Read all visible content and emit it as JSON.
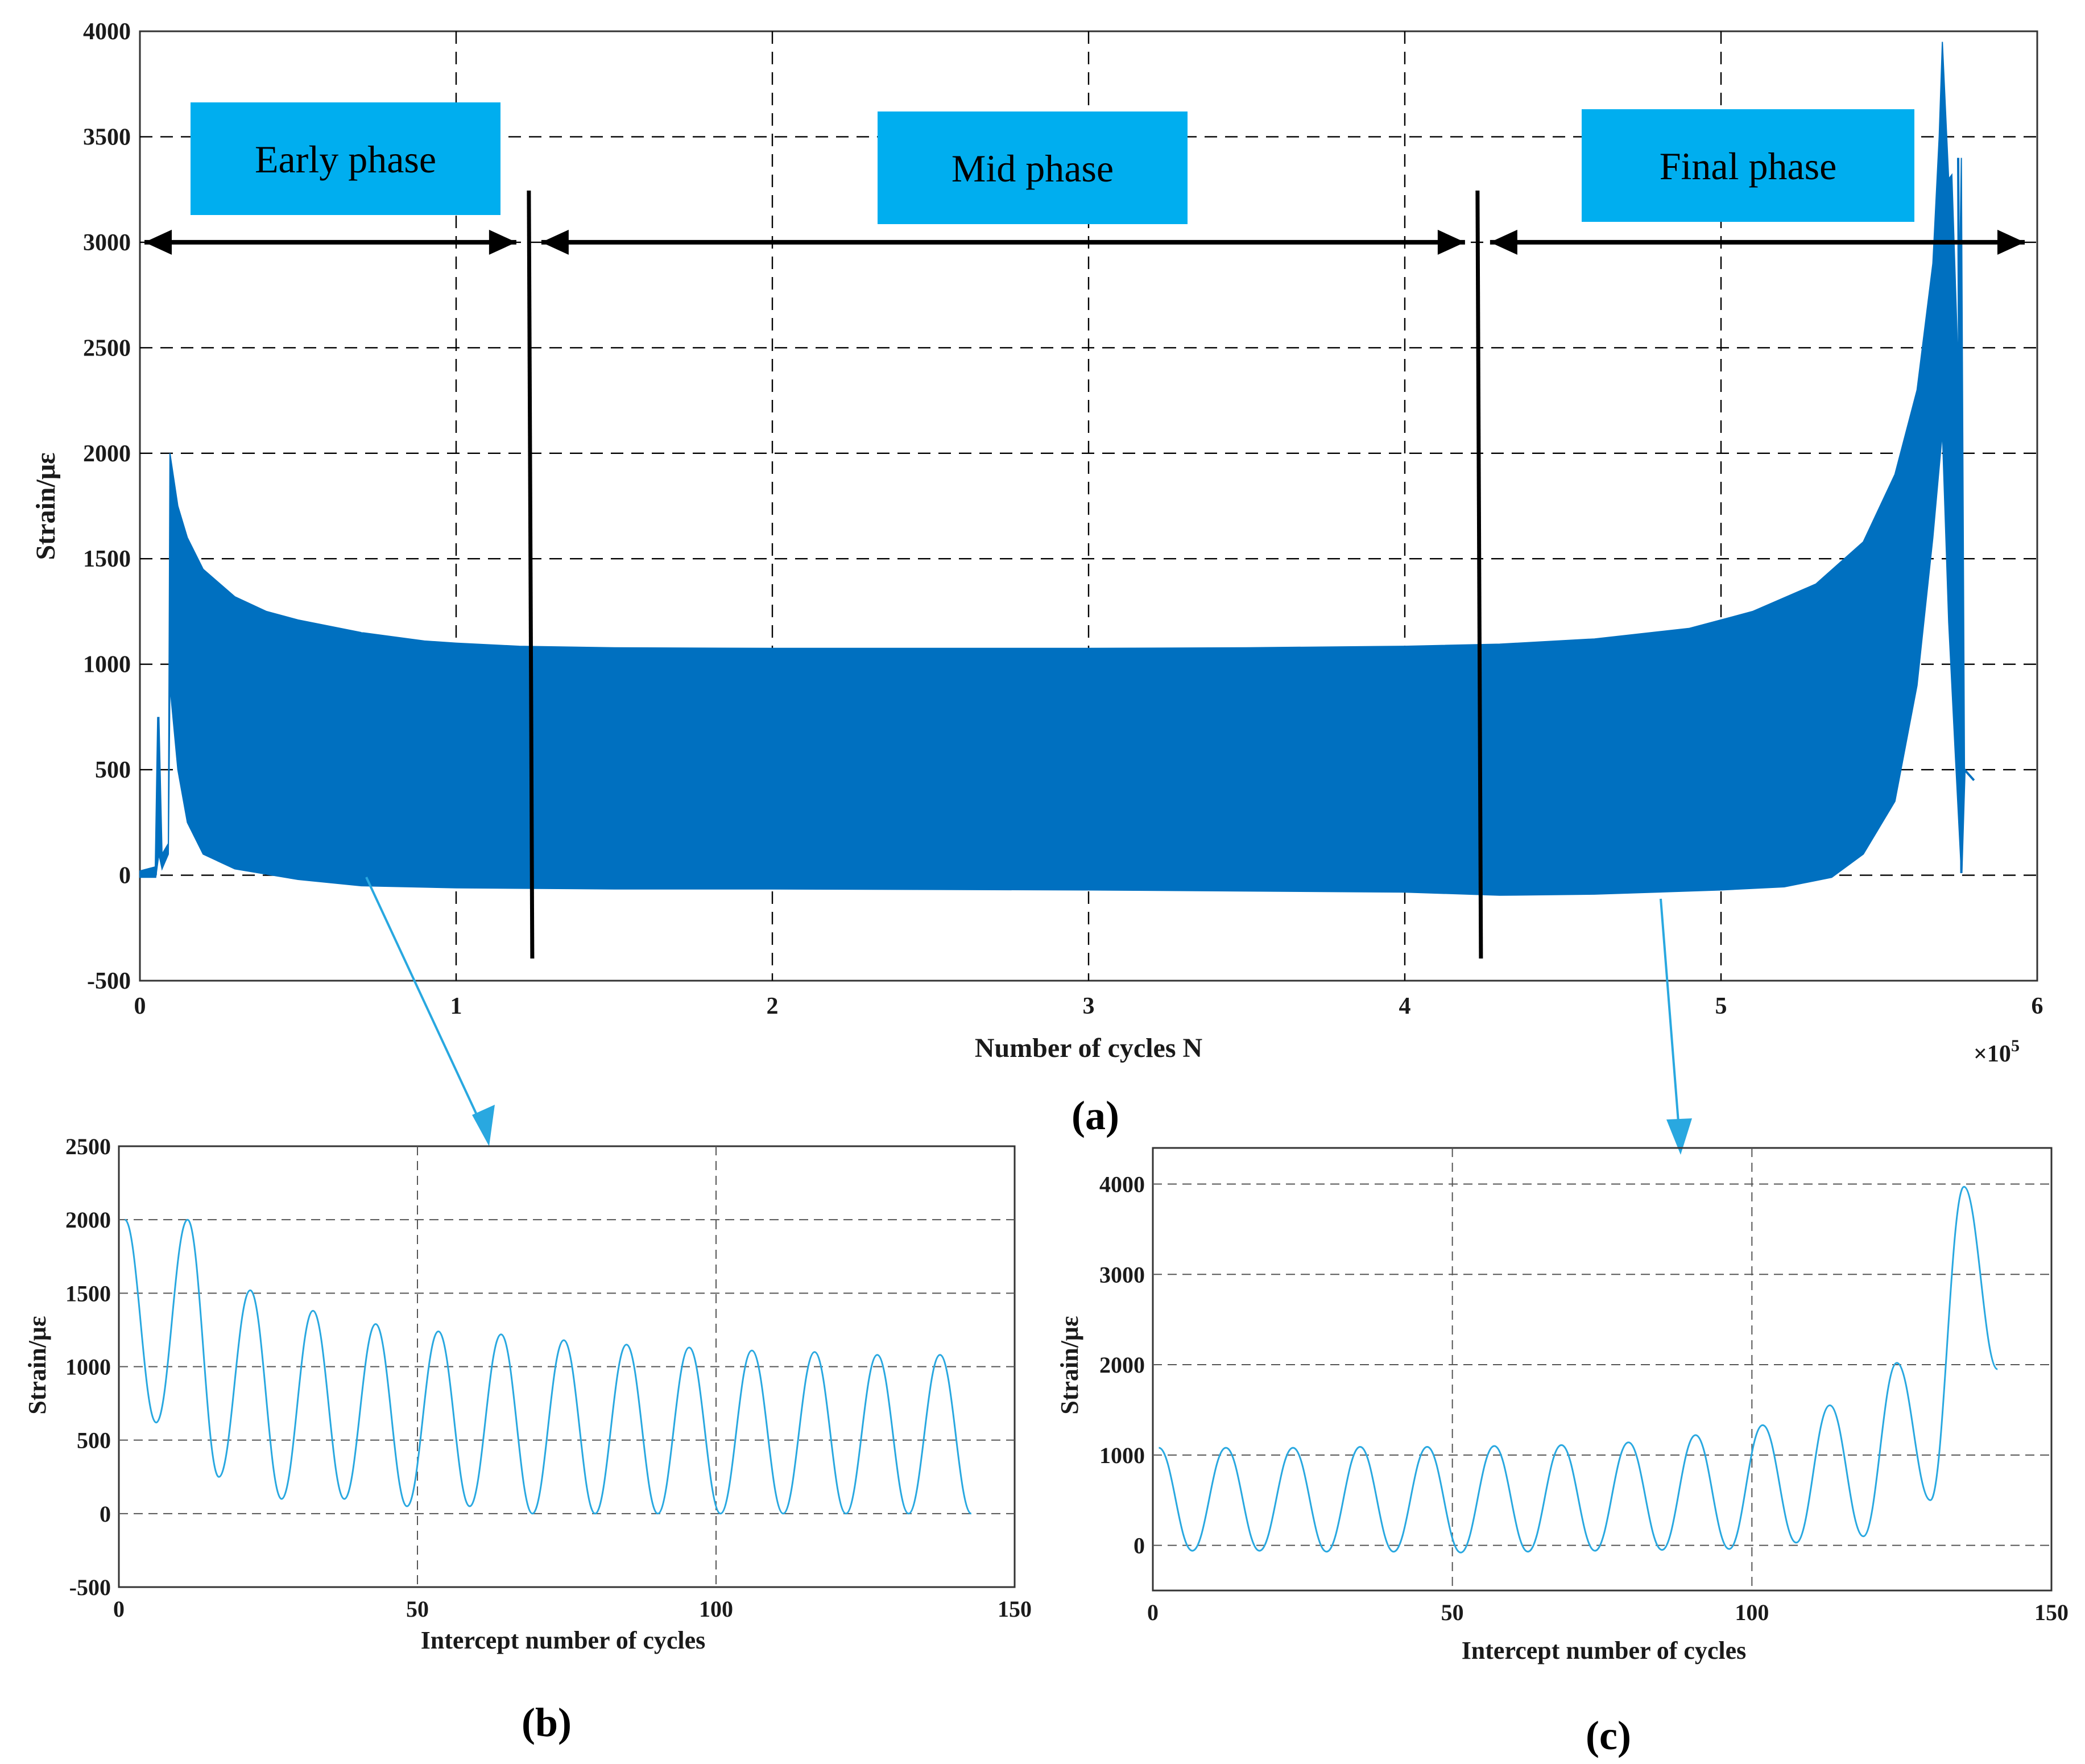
{
  "chart_data": [
    {
      "id": "a",
      "type": "area",
      "panel_label": "(a)",
      "xlabel": "Number of cycles N",
      "x_multiplier": "×10",
      "x_multiplier_exp": "5",
      "ylabel": "Strain/με",
      "xlim": [
        0,
        6
      ],
      "ylim": [
        -500,
        4000
      ],
      "xticks": [
        0,
        1,
        2,
        3,
        4,
        5,
        6
      ],
      "yticks": [
        -500,
        0,
        500,
        1000,
        1500,
        2000,
        2500,
        3000,
        3500,
        4000
      ],
      "grid": true,
      "series_color": "#0070C0",
      "phases": [
        {
          "label": "Early phase",
          "from": 0,
          "to": 1.23
        },
        {
          "label": "Mid phase",
          "from": 1.23,
          "to": 4.23
        },
        {
          "label": "Final phase",
          "from": 4.23,
          "to": 6.0
        }
      ],
      "phase_dividers": [
        1.23,
        4.23
      ],
      "upper_envelope": [
        [
          0.0,
          20
        ],
        [
          0.05,
          40
        ],
        [
          0.06,
          750
        ],
        [
          0.07,
          100
        ],
        [
          0.09,
          150
        ],
        [
          0.095,
          2000
        ],
        [
          0.12,
          1750
        ],
        [
          0.15,
          1600
        ],
        [
          0.2,
          1450
        ],
        [
          0.3,
          1320
        ],
        [
          0.4,
          1250
        ],
        [
          0.5,
          1210
        ],
        [
          0.7,
          1150
        ],
        [
          0.9,
          1110
        ],
        [
          1.0,
          1100
        ],
        [
          1.2,
          1085
        ],
        [
          1.5,
          1078
        ],
        [
          2.0,
          1075
        ],
        [
          2.5,
          1075
        ],
        [
          3.0,
          1075
        ],
        [
          3.5,
          1078
        ],
        [
          4.0,
          1085
        ],
        [
          4.3,
          1095
        ],
        [
          4.6,
          1120
        ],
        [
          4.9,
          1170
        ],
        [
          5.1,
          1250
        ],
        [
          5.3,
          1380
        ],
        [
          5.45,
          1580
        ],
        [
          5.55,
          1900
        ],
        [
          5.62,
          2300
        ],
        [
          5.67,
          2900
        ],
        [
          5.69,
          3500
        ],
        [
          5.7,
          3950
        ],
        [
          5.72,
          3300
        ],
        [
          5.73,
          3320
        ],
        [
          5.75,
          2400
        ],
        [
          5.76,
          3400
        ],
        [
          5.77,
          500
        ],
        [
          5.8,
          450
        ]
      ],
      "lower_envelope": [
        [
          0.0,
          -10
        ],
        [
          0.05,
          -10
        ],
        [
          0.06,
          100
        ],
        [
          0.07,
          30
        ],
        [
          0.09,
          100
        ],
        [
          0.095,
          900
        ],
        [
          0.12,
          500
        ],
        [
          0.15,
          250
        ],
        [
          0.2,
          100
        ],
        [
          0.3,
          30
        ],
        [
          0.5,
          -20
        ],
        [
          0.7,
          -50
        ],
        [
          1.0,
          -60
        ],
        [
          1.5,
          -65
        ],
        [
          2.0,
          -65
        ],
        [
          3.0,
          -70
        ],
        [
          4.0,
          -80
        ],
        [
          4.3,
          -95
        ],
        [
          4.6,
          -90
        ],
        [
          5.0,
          -70
        ],
        [
          5.2,
          -55
        ],
        [
          5.35,
          -10
        ],
        [
          5.45,
          100
        ],
        [
          5.55,
          350
        ],
        [
          5.62,
          900
        ],
        [
          5.67,
          1600
        ],
        [
          5.7,
          2100
        ],
        [
          5.72,
          1200
        ],
        [
          5.74,
          600
        ],
        [
          5.76,
          10
        ],
        [
          5.77,
          500
        ],
        [
          5.8,
          450
        ]
      ]
    },
    {
      "id": "b",
      "type": "line",
      "panel_label": "(b)",
      "xlabel": "Intercept number of cycles",
      "ylabel": "Strain/με",
      "xlim": [
        0,
        150
      ],
      "ylim": [
        -500,
        2500
      ],
      "xticks": [
        0,
        50,
        100,
        150
      ],
      "yticks": [
        -500,
        0,
        500,
        1000,
        1500,
        2000,
        2500
      ],
      "grid": true,
      "series_color": "#29A8E0",
      "start_x": 1,
      "period": 10.5,
      "peaks": [
        2000,
        2000,
        1520,
        1380,
        1290,
        1240,
        1220,
        1180,
        1150,
        1130,
        1110,
        1100,
        1080,
        1080
      ],
      "troughs": [
        620,
        250,
        100,
        100,
        50,
        50,
        0,
        0,
        0,
        0,
        0,
        0,
        0,
        0
      ],
      "end_x": 143
    },
    {
      "id": "c",
      "type": "line",
      "panel_label": "(c)",
      "xlabel": "Intercept number of cycles",
      "ylabel": "Strain/με",
      "xlim": [
        0,
        150
      ],
      "ylim": [
        -500,
        4400
      ],
      "xticks": [
        0,
        50,
        100,
        150
      ],
      "yticks": [
        0,
        1000,
        2000,
        3000,
        4000
      ],
      "grid": true,
      "series_color": "#29A8E0",
      "start_x": 1,
      "period": 11.2,
      "peaks": [
        1080,
        1080,
        1080,
        1090,
        1090,
        1100,
        1110,
        1140,
        1220,
        1330,
        1550,
        2020,
        3970,
        3970
      ],
      "troughs": [
        -60,
        -60,
        -70,
        -70,
        -80,
        -70,
        -60,
        -50,
        -40,
        30,
        100,
        500,
        1950
      ],
      "end_x": 143
    }
  ]
}
